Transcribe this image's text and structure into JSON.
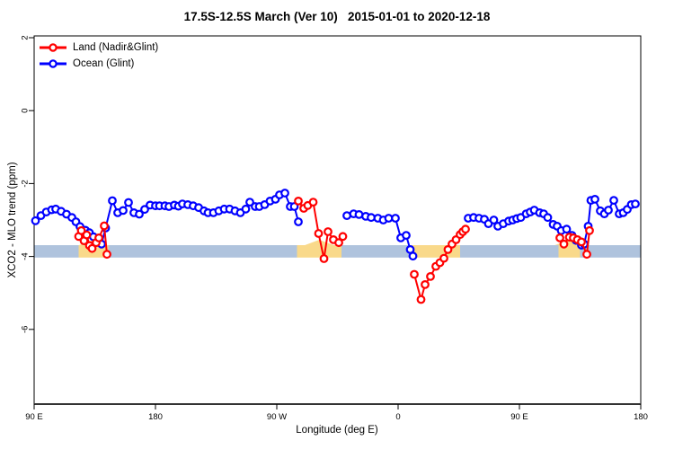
{
  "title": "17.5S-12.5S March (Ver 10)   2015-01-01 to 2020-12-18",
  "legend": [
    {
      "label": "Land (Nadir&Glint)",
      "color": "#ff0000"
    },
    {
      "label": "Ocean (Glint)",
      "color": "#0000ff"
    }
  ],
  "colors": {
    "land": "#ff0000",
    "ocean": "#0000ff",
    "band_blue": "#afc3dd",
    "band_tan": "#f9d98a",
    "axis": "#000000"
  },
  "chart_data": {
    "type": "line",
    "title": "17.5S-12.5S March (Ver 10)   2015-01-01 to 2020-12-18",
    "xlabel": "Longitude (deg E)",
    "ylabel": "XCO2 - MLO trend (ppm)",
    "x_axis": {
      "description": "longitude axis starting at 90 E going eastward, wrapping past 180 and 0, total span 450 deg",
      "tick_labels": [
        "90 E",
        "180",
        "90 W",
        "0",
        "90 E",
        "180"
      ],
      "tick_offsets_deg": [
        0,
        90,
        180,
        270,
        360,
        450
      ],
      "span_deg": 450
    },
    "y_axis": {
      "ticks": [
        2,
        0,
        -2,
        -4,
        -6
      ],
      "range": [
        -8.1,
        2.05
      ],
      "grid": false
    },
    "legend_position": "top-left",
    "band": {
      "description": "horizontal reference band",
      "v_top": -3.69,
      "v_bottom": -4.03,
      "segments": [
        {
          "color": "#afc3dd",
          "t0": 0,
          "t1": 33,
          "hump": false
        },
        {
          "color": "#f9d98a",
          "t0": 33,
          "t1": 55,
          "hump": true
        },
        {
          "color": "#afc3dd",
          "t0": 55,
          "t1": 195,
          "hump": false
        },
        {
          "color": "#f9d98a",
          "t0": 195,
          "t1": 228,
          "hump": true
        },
        {
          "color": "#afc3dd",
          "t0": 228,
          "t1": 280,
          "hump": false
        },
        {
          "color": "#f9d98a",
          "t0": 280,
          "t1": 316,
          "hump": false
        },
        {
          "color": "#afc3dd",
          "t0": 316,
          "t1": 389,
          "hump": false
        },
        {
          "color": "#f9d98a",
          "t0": 389,
          "t1": 405,
          "hump": true
        },
        {
          "color": "#afc3dd",
          "t0": 405,
          "t1": 450,
          "hump": false
        }
      ]
    },
    "series": [
      {
        "name": "Land (Nadir&Glint)",
        "color": "#ff0000",
        "segments": [
          [
            [
              33,
              -3.45
            ],
            [
              35,
              -3.29
            ],
            [
              37,
              -3.57
            ],
            [
              39,
              -3.41
            ],
            [
              41,
              -3.7
            ],
            [
              43,
              -3.78
            ],
            [
              46,
              -3.62
            ],
            [
              48,
              -3.49
            ],
            [
              52,
              -3.16
            ],
            [
              54,
              -3.94
            ]
          ],
          [
            [
              196,
              -2.48
            ],
            [
              200,
              -2.68
            ],
            [
              203,
              -2.6
            ],
            [
              207,
              -2.51
            ],
            [
              211,
              -3.37
            ],
            [
              215,
              -4.06
            ],
            [
              218,
              -3.32
            ],
            [
              222,
              -3.54
            ],
            [
              226,
              -3.62
            ],
            [
              229,
              -3.45
            ]
          ],
          [
            [
              282,
              -4.49
            ],
            [
              287,
              -5.18
            ],
            [
              290,
              -4.77
            ],
            [
              294,
              -4.55
            ],
            [
              298,
              -4.27
            ],
            [
              301,
              -4.17
            ],
            [
              304,
              -4.05
            ],
            [
              307,
              -3.81
            ],
            [
              310,
              -3.66
            ],
            [
              313,
              -3.54
            ],
            [
              316,
              -3.4
            ],
            [
              318,
              -3.32
            ],
            [
              320,
              -3.25
            ]
          ],
          [
            [
              390,
              -3.49
            ],
            [
              393,
              -3.66
            ],
            [
              397,
              -3.47
            ],
            [
              400,
              -3.49
            ],
            [
              403,
              -3.54
            ],
            [
              406,
              -3.6
            ],
            [
              410,
              -3.94
            ],
            [
              412,
              -3.29
            ]
          ]
        ]
      },
      {
        "name": "Ocean (Glint)",
        "color": "#0000ff",
        "segments": [
          [
            [
              1,
              -3.02
            ],
            [
              5,
              -2.88
            ],
            [
              9,
              -2.78
            ],
            [
              13,
              -2.72
            ],
            [
              16,
              -2.7
            ],
            [
              20,
              -2.76
            ],
            [
              24,
              -2.84
            ],
            [
              28,
              -2.93
            ],
            [
              31,
              -3.05
            ],
            [
              34,
              -3.18
            ],
            [
              38,
              -3.28
            ],
            [
              41,
              -3.35
            ],
            [
              44,
              -3.46
            ],
            [
              47,
              -3.61
            ],
            [
              50,
              -3.66
            ],
            [
              53,
              -3.22
            ],
            [
              58,
              -2.47
            ],
            [
              62,
              -2.8
            ],
            [
              66,
              -2.74
            ],
            [
              70,
              -2.52
            ],
            [
              74,
              -2.8
            ],
            [
              78,
              -2.84
            ],
            [
              82,
              -2.71
            ],
            [
              86,
              -2.59
            ],
            [
              90,
              -2.61
            ],
            [
              93,
              -2.61
            ],
            [
              97,
              -2.61
            ],
            [
              100,
              -2.63
            ],
            [
              104,
              -2.59
            ],
            [
              107,
              -2.62
            ],
            [
              110,
              -2.56
            ],
            [
              114,
              -2.58
            ],
            [
              118,
              -2.61
            ],
            [
              122,
              -2.66
            ],
            [
              126,
              -2.75
            ],
            [
              129,
              -2.8
            ],
            [
              133,
              -2.8
            ],
            [
              137,
              -2.75
            ],
            [
              141,
              -2.7
            ],
            [
              145,
              -2.7
            ],
            [
              149,
              -2.75
            ],
            [
              153,
              -2.8
            ],
            [
              157,
              -2.7
            ],
            [
              160,
              -2.51
            ],
            [
              164,
              -2.63
            ],
            [
              167,
              -2.63
            ],
            [
              171,
              -2.58
            ],
            [
              175,
              -2.48
            ],
            [
              179,
              -2.43
            ],
            [
              182,
              -2.31
            ],
            [
              186,
              -2.26
            ],
            [
              190,
              -2.63
            ],
            [
              193,
              -2.63
            ],
            [
              196,
              -3.05
            ]
          ],
          [
            [
              232,
              -2.88
            ],
            [
              237,
              -2.83
            ],
            [
              241,
              -2.85
            ],
            [
              246,
              -2.9
            ],
            [
              250,
              -2.93
            ],
            [
              255,
              -2.95
            ],
            [
              259,
              -3.0
            ],
            [
              263,
              -2.95
            ],
            [
              268,
              -2.95
            ],
            [
              272,
              -3.49
            ],
            [
              276,
              -3.42
            ],
            [
              279,
              -3.81
            ],
            [
              281,
              -3.99
            ]
          ],
          [
            [
              322,
              -2.95
            ],
            [
              326,
              -2.93
            ],
            [
              330,
              -2.95
            ],
            [
              334,
              -2.98
            ],
            [
              337,
              -3.1
            ],
            [
              341,
              -3.0
            ],
            [
              344,
              -3.17
            ],
            [
              348,
              -3.1
            ],
            [
              352,
              -3.03
            ],
            [
              355,
              -3.0
            ],
            [
              358,
              -2.96
            ],
            [
              361,
              -2.93
            ],
            [
              365,
              -2.83
            ],
            [
              368,
              -2.78
            ],
            [
              371,
              -2.73
            ],
            [
              375,
              -2.8
            ],
            [
              378,
              -2.83
            ],
            [
              381,
              -2.93
            ],
            [
              385,
              -3.12
            ],
            [
              388,
              -3.17
            ],
            [
              391,
              -3.29
            ],
            [
              395,
              -3.25
            ],
            [
              399,
              -3.42
            ],
            [
              402,
              -3.56
            ],
            [
              406,
              -3.69
            ],
            [
              408,
              -3.66
            ],
            [
              411,
              -3.17
            ],
            [
              413,
              -2.46
            ],
            [
              416,
              -2.43
            ],
            [
              420,
              -2.75
            ],
            [
              423,
              -2.83
            ],
            [
              426,
              -2.73
            ],
            [
              430,
              -2.46
            ],
            [
              434,
              -2.83
            ],
            [
              437,
              -2.8
            ],
            [
              440,
              -2.71
            ],
            [
              443,
              -2.58
            ],
            [
              446,
              -2.56
            ]
          ]
        ]
      }
    ]
  }
}
